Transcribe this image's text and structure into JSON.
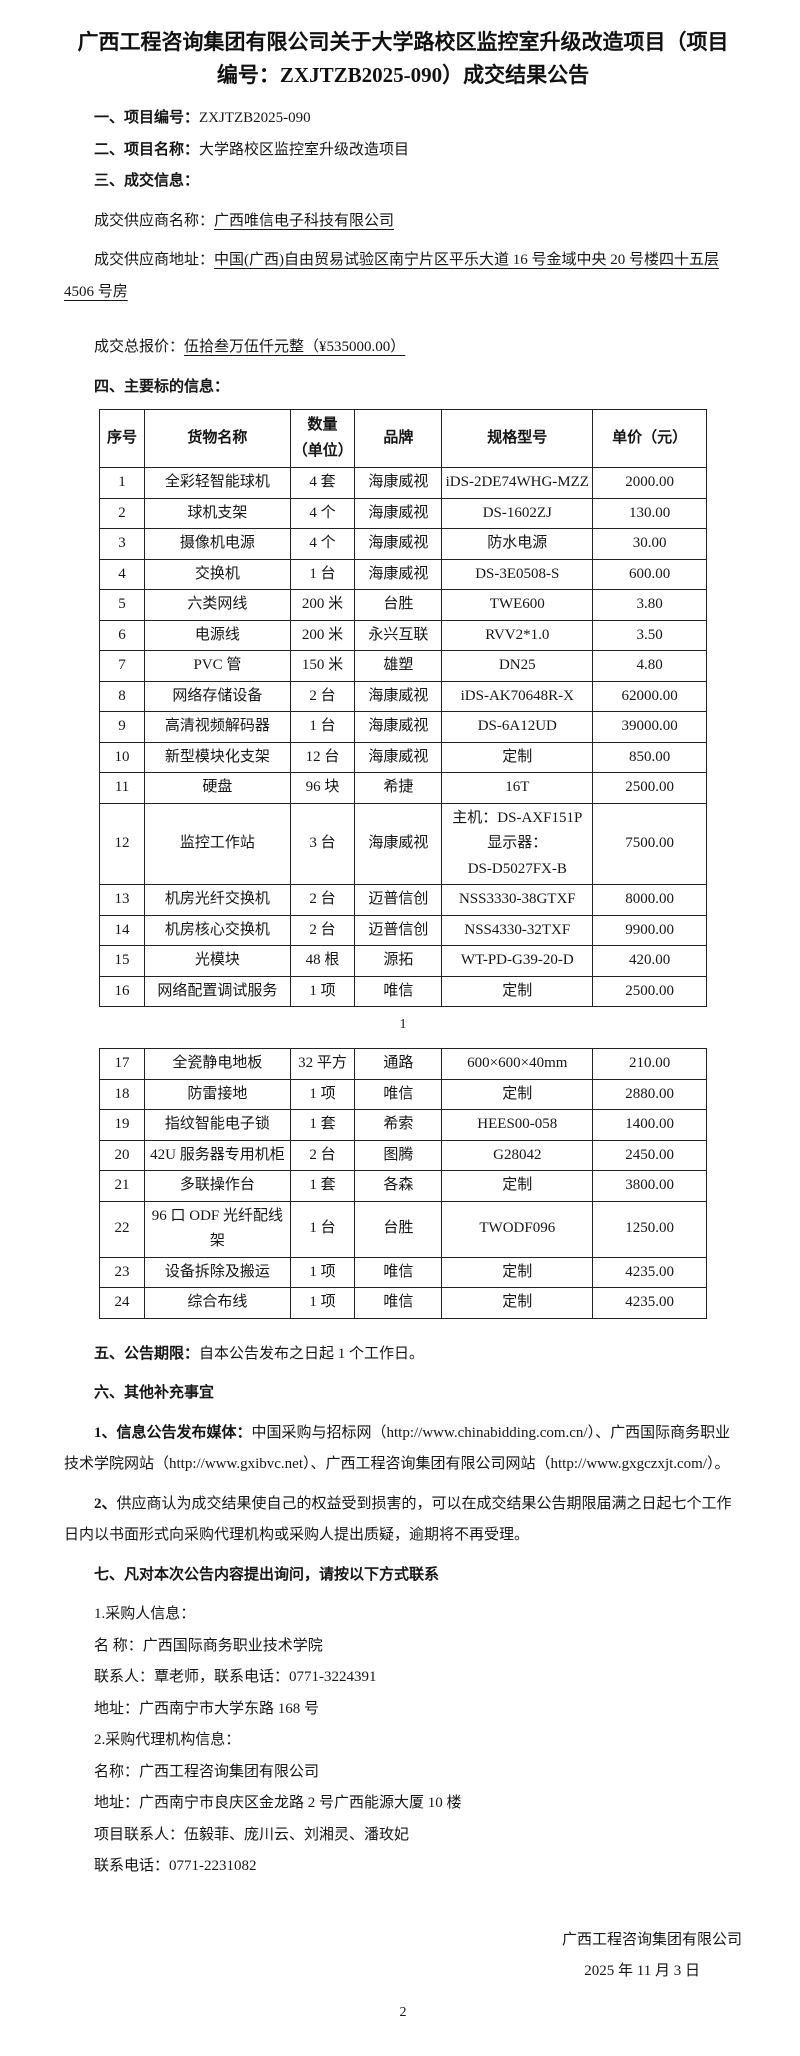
{
  "title": "广西工程咨询集团有限公司关于大学路校区监控室升级改造项目（项目编号：ZXJTZB2025-090）成交结果公告",
  "meta": {
    "project_no_label": "一、项目编号：",
    "project_no": "ZXJTZB2025-090",
    "project_name_label": "二、项目名称：",
    "project_name": "大学路校区监控室升级改造项目",
    "deal_info_label": "三、成交信息："
  },
  "deal": {
    "supplier_name_label": "成交供应商名称：",
    "supplier_name": "广西唯信电子科技有限公司",
    "supplier_addr_label": "成交供应商地址：",
    "supplier_addr": "中国(广西)自由贸易试验区南宁片区平乐大道 16 号金域中央 20 号楼四十五层 4506 号房",
    "total_label": "成交总报价：",
    "total_value": "伍拾叁万伍仟元整（¥535000.00）"
  },
  "table_section": {
    "label": "四、主要标的信息："
  },
  "table": {
    "headers": [
      "序号",
      "货物名称",
      "数量\n（单位）",
      "品牌",
      "规格型号",
      "单价（元）"
    ],
    "rows_page1": [
      {
        "no": "1",
        "name": "全彩轻智能球机",
        "qty": "4 套",
        "brand": "海康威视",
        "model": "iDS-2DE74WHG-MZZ",
        "price": "2000.00"
      },
      {
        "no": "2",
        "name": "球机支架",
        "qty": "4 个",
        "brand": "海康威视",
        "model": "DS-1602ZJ",
        "price": "130.00"
      },
      {
        "no": "3",
        "name": "摄像机电源",
        "qty": "4 个",
        "brand": "海康威视",
        "model": "防水电源",
        "price": "30.00"
      },
      {
        "no": "4",
        "name": "交换机",
        "qty": "1 台",
        "brand": "海康威视",
        "model": "DS-3E0508-S",
        "price": "600.00"
      },
      {
        "no": "5",
        "name": "六类网线",
        "qty": "200 米",
        "brand": "台胜",
        "model": "TWE600",
        "price": "3.80"
      },
      {
        "no": "6",
        "name": "电源线",
        "qty": "200 米",
        "brand": "永兴互联",
        "model": "RVV2*1.0",
        "price": "3.50"
      },
      {
        "no": "7",
        "name": "PVC 管",
        "qty": "150 米",
        "brand": "雄塑",
        "model": "DN25",
        "price": "4.80"
      },
      {
        "no": "8",
        "name": "网络存储设备",
        "qty": "2 台",
        "brand": "海康威视",
        "model": "iDS-AK70648R-X",
        "price": "62000.00"
      },
      {
        "no": "9",
        "name": "高清视频解码器",
        "qty": "1 台",
        "brand": "海康威视",
        "model": "DS-6A12UD",
        "price": "39000.00"
      },
      {
        "no": "10",
        "name": "新型模块化支架",
        "qty": "12 台",
        "brand": "海康威视",
        "model": "定制",
        "price": "850.00"
      },
      {
        "no": "11",
        "name": "硬盘",
        "qty": "96 块",
        "brand": "希捷",
        "model": "16T",
        "price": "2500.00"
      },
      {
        "no": "12",
        "name": "监控工作站",
        "qty": "3 台",
        "brand": "海康威视",
        "model": "主机：DS-AXF151P\n显示器：\nDS-D5027FX-B",
        "price": "7500.00"
      },
      {
        "no": "13",
        "name": "机房光纤交换机",
        "qty": "2 台",
        "brand": "迈普信创",
        "model": "NSS3330-38GTXF",
        "price": "8000.00"
      },
      {
        "no": "14",
        "name": "机房核心交换机",
        "qty": "2 台",
        "brand": "迈普信创",
        "model": "NSS4330-32TXF",
        "price": "9900.00"
      },
      {
        "no": "15",
        "name": "光模块",
        "qty": "48 根",
        "brand": "源拓",
        "model": "WT-PD-G39-20-D",
        "price": "420.00"
      },
      {
        "no": "16",
        "name": "网络配置调试服务",
        "qty": "1 项",
        "brand": "唯信",
        "model": "定制",
        "price": "2500.00"
      }
    ],
    "rows_page2": [
      {
        "no": "17",
        "name": "全瓷静电地板",
        "qty": "32 平方",
        "brand": "通路",
        "model": "600×600×40mm",
        "price": "210.00"
      },
      {
        "no": "18",
        "name": "防雷接地",
        "qty": "1 项",
        "brand": "唯信",
        "model": "定制",
        "price": "2880.00"
      },
      {
        "no": "19",
        "name": "指纹智能电子锁",
        "qty": "1 套",
        "brand": "希索",
        "model": "HEES00-058",
        "price": "1400.00"
      },
      {
        "no": "20",
        "name": "42U 服务器专用机柜",
        "qty": "2 台",
        "brand": "图腾",
        "model": "G28042",
        "price": "2450.00"
      },
      {
        "no": "21",
        "name": "多联操作台",
        "qty": "1 套",
        "brand": "各森",
        "model": "定制",
        "price": "3800.00"
      },
      {
        "no": "22",
        "name": "96 口 ODF 光纤配线架",
        "qty": "1 台",
        "brand": "台胜",
        "model": "TWODF096",
        "price": "1250.00"
      },
      {
        "no": "23",
        "name": "设备拆除及搬运",
        "qty": "1 项",
        "brand": "唯信",
        "model": "定制",
        "price": "4235.00"
      },
      {
        "no": "24",
        "name": "综合布线",
        "qty": "1 项",
        "brand": "唯信",
        "model": "定制",
        "price": "4235.00"
      }
    ]
  },
  "page_numbers": {
    "p1": "1",
    "p2": "2"
  },
  "sections": {
    "s5_label": "五、公告期限：",
    "s5_value": "自本公告发布之日起 1 个工作日。",
    "s6_label": "六、其他补充事宜",
    "s6_p1_label": "1、信息公告发布媒体：",
    "s6_p1_text": "中国采购与招标网（http://www.chinabidding.com.cn/）、广西国际商务职业技术学院网站（http://www.gxibvc.net）、广西工程咨询集团有限公司网站（http://www.gxgczxjt.com/）。",
    "s6_p2_label": "2、",
    "s6_p2_text": "供应商认为成交结果使自己的权益受到损害的，可以在成交结果公告期限届满之日起七个工作日内以书面形式向采购代理机构或采购人提出质疑，逾期将不再受理。",
    "s7_label": "七、凡对本次公告内容提出询问，请按以下方式联系",
    "buyer_header": "1.采购人信息：",
    "buyer_name": "名 称：广西国际商务职业技术学院",
    "buyer_contact": "联系人：覃老师，联系电话：0771-3224391",
    "buyer_addr": "地址：广西南宁市大学东路 168 号",
    "agency_header": "2.采购代理机构信息：",
    "agency_name": "名称：广西工程咨询集团有限公司",
    "agency_addr": "地址：广西南宁市良庆区金龙路 2 号广西能源大厦 10 楼",
    "agency_contacts": "项目联系人：伍毅菲、庞川云、刘湘灵、潘玫妃",
    "agency_phone": "联系电话：0771-2231082"
  },
  "footer": {
    "company": "广西工程咨询集团有限公司",
    "date": "2025 年 11 月 3 日"
  }
}
